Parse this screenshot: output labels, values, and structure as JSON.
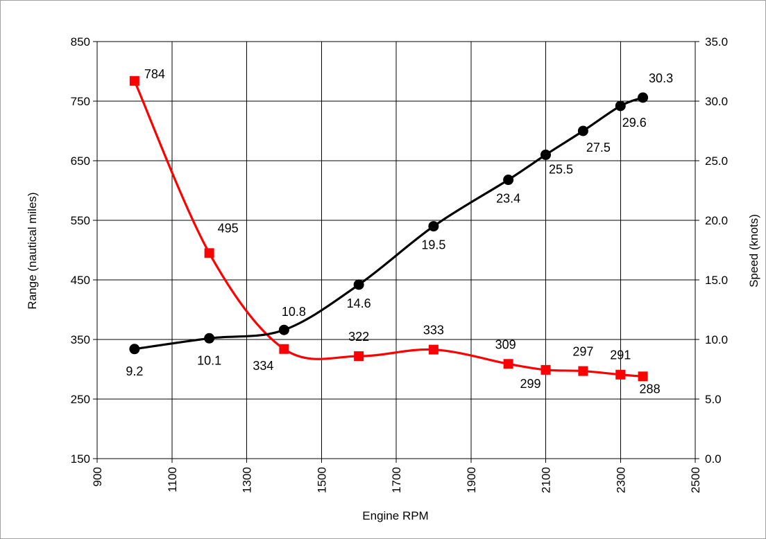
{
  "chart_data": {
    "type": "line",
    "xlabel": "Engine RPM",
    "ylabel_left": "Range (nautical miles)",
    "ylabel_right": "Speed (knots)",
    "xlim": [
      900,
      2500
    ],
    "ylim_left": [
      150,
      850
    ],
    "ylim_right": [
      0.0,
      35.0
    ],
    "x_ticks": [
      "900",
      "1100",
      "1300",
      "1500",
      "1700",
      "1900",
      "2100",
      "2300",
      "2500"
    ],
    "y_left_ticks": [
      "150",
      "250",
      "350",
      "450",
      "550",
      "650",
      "750",
      "850"
    ],
    "y_right_ticks": [
      "0.0",
      "5.0",
      "10.0",
      "15.0",
      "20.0",
      "25.0",
      "30.0",
      "35.0"
    ],
    "grid": true,
    "series": [
      {
        "axis": "left",
        "color": "#ff0000",
        "marker": "square",
        "x": [
          1000,
          1200,
          1400,
          1600,
          1800,
          2000,
          2100,
          2200,
          2300,
          2360
        ],
        "values": [
          784,
          495,
          334,
          322,
          333,
          309,
          299,
          297,
          291,
          288
        ],
        "labels": [
          "784",
          "495",
          "334",
          "322",
          "333",
          "309",
          "299",
          "297",
          "291",
          "288"
        ]
      },
      {
        "axis": "right",
        "color": "#000000",
        "marker": "circle",
        "x": [
          1000,
          1200,
          1400,
          1600,
          1800,
          2000,
          2100,
          2200,
          2300,
          2360
        ],
        "values": [
          9.2,
          10.1,
          10.8,
          14.6,
          19.5,
          23.4,
          25.5,
          27.5,
          29.6,
          30.3
        ],
        "labels": [
          "9.2",
          "10.1",
          "10.8",
          "14.6",
          "19.5",
          "23.4",
          "25.5",
          "27.5",
          "29.6",
          "30.3"
        ]
      }
    ]
  }
}
